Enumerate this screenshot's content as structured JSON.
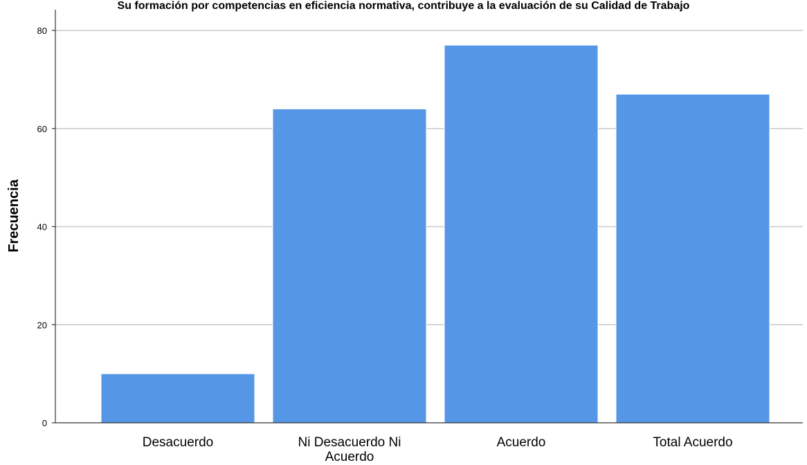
{
  "chart_data": {
    "type": "bar",
    "title": "Su formación por competencias en eficiencia normativa, contribuye a la evaluación de su Calidad de Trabajo",
    "xlabel": "",
    "ylabel": "Frecuencia",
    "categories": [
      "Desacuerdo",
      "Ni Desacuerdo Ni Acuerdo",
      "Acuerdo",
      "Total Acuerdo"
    ],
    "category_label_lines": [
      [
        "Desacuerdo"
      ],
      [
        "Ni Desacuerdo Ni",
        "Acuerdo"
      ],
      [
        "Acuerdo"
      ],
      [
        "Total Acuerdo"
      ]
    ],
    "values": [
      10,
      64,
      77,
      67
    ],
    "ylim": [
      0,
      80
    ],
    "yticks": [
      0,
      20,
      40,
      60,
      80
    ],
    "grid": true,
    "bar_color": "#5596e6"
  }
}
